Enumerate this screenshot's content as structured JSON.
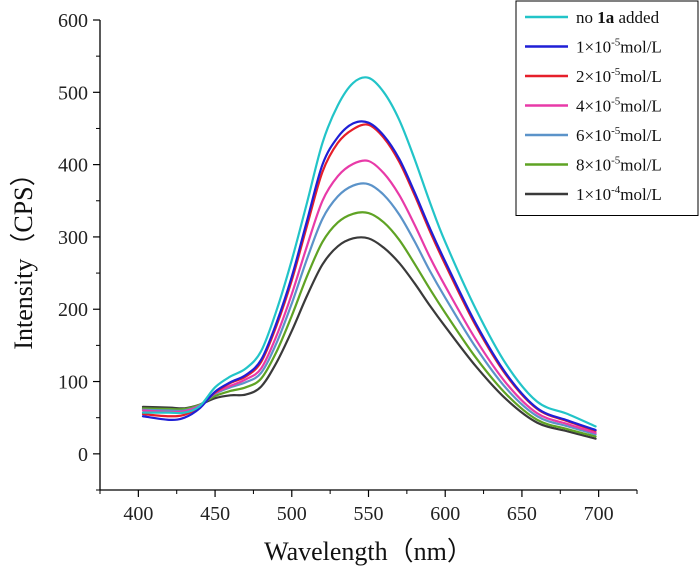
{
  "chart_data": {
    "type": "line",
    "xlabel": "Wavelength（nm）",
    "ylabel": "Intensity（CPS）",
    "xlim": [
      375,
      725
    ],
    "ylim": [
      -50,
      600
    ],
    "xticks": [
      400,
      450,
      500,
      550,
      600,
      650,
      700
    ],
    "xtick_labels": [
      "400",
      "450",
      "500",
      "550",
      "600",
      "650",
      "700"
    ],
    "yticks": [
      0,
      100,
      200,
      300,
      400,
      500,
      600
    ],
    "ytick_labels": [
      "0",
      "100",
      "200",
      "300",
      "400",
      "500",
      "600"
    ],
    "legend_position": "top-right",
    "x": [
      403,
      420,
      430,
      440,
      450,
      460,
      470,
      480,
      490,
      500,
      510,
      520,
      530,
      540,
      550,
      560,
      570,
      580,
      590,
      600,
      620,
      640,
      660,
      680,
      698
    ],
    "series": [
      {
        "name": "no 1a added",
        "color": "#22c4c8",
        "values": [
          57,
          57,
          57,
          66,
          92,
          107,
          118,
          142,
          198,
          268,
          348,
          430,
          482,
          513,
          520,
          500,
          462,
          408,
          348,
          293,
          200,
          123,
          72,
          55,
          38
        ]
      },
      {
        "name": "1×10-5mol/L",
        "color": "#1f1fd6",
        "values": [
          52,
          47,
          50,
          63,
          86,
          99,
          109,
          130,
          181,
          245,
          323,
          400,
          438,
          457,
          458,
          440,
          408,
          362,
          312,
          266,
          180,
          110,
          63,
          46,
          33
        ]
      },
      {
        "name": "2×10-5mol/L",
        "color": "#e61f2a",
        "values": [
          55,
          52,
          54,
          65,
          85,
          98,
          107,
          127,
          177,
          240,
          316,
          390,
          430,
          449,
          455,
          437,
          404,
          358,
          308,
          262,
          177,
          108,
          62,
          45,
          32
        ]
      },
      {
        "name": "4×10-5mol/L",
        "color": "#e83aa8",
        "values": [
          60,
          58,
          59,
          67,
          84,
          94,
          103,
          118,
          163,
          221,
          288,
          350,
          384,
          401,
          405,
          388,
          358,
          317,
          272,
          232,
          158,
          97,
          56,
          41,
          29
        ]
      },
      {
        "name": "6×10-5mol/L",
        "color": "#5b93c9",
        "values": [
          61,
          60,
          60,
          67,
          83,
          92,
          99,
          112,
          153,
          208,
          270,
          325,
          356,
          371,
          373,
          358,
          331,
          294,
          253,
          216,
          147,
          90,
          52,
          38,
          27
        ]
      },
      {
        "name": "8×10-5mol/L",
        "color": "#5fa324",
        "values": [
          63,
          62,
          62,
          68,
          80,
          87,
          92,
          104,
          141,
          191,
          246,
          293,
          320,
          332,
          333,
          320,
          296,
          263,
          228,
          195,
          133,
          82,
          47,
          34,
          24
        ]
      },
      {
        "name": "1×10-4mol/L",
        "color": "#3a3a3a",
        "values": [
          65,
          64,
          63,
          68,
          77,
          81,
          82,
          93,
          126,
          170,
          219,
          262,
          287,
          298,
          298,
          285,
          264,
          236,
          205,
          176,
          121,
          75,
          43,
          31,
          21
        ]
      }
    ],
    "legend": [
      {
        "pre": "no ",
        "bold": "1a",
        "post": " added",
        "sup": ""
      },
      {
        "pre": "1×10",
        "bold": "",
        "post": "mol/L",
        "sup": "-5"
      },
      {
        "pre": "2×10",
        "bold": "",
        "post": "mol/L",
        "sup": "-5"
      },
      {
        "pre": "4×10",
        "bold": "",
        "post": "mol/L",
        "sup": "-5"
      },
      {
        "pre": "6×10",
        "bold": "",
        "post": "mol/L",
        "sup": "-5"
      },
      {
        "pre": "8×10",
        "bold": "",
        "post": "mol/L",
        "sup": "-5"
      },
      {
        "pre": "1×10",
        "bold": "",
        "post": "mol/L",
        "sup": "-4"
      }
    ]
  }
}
